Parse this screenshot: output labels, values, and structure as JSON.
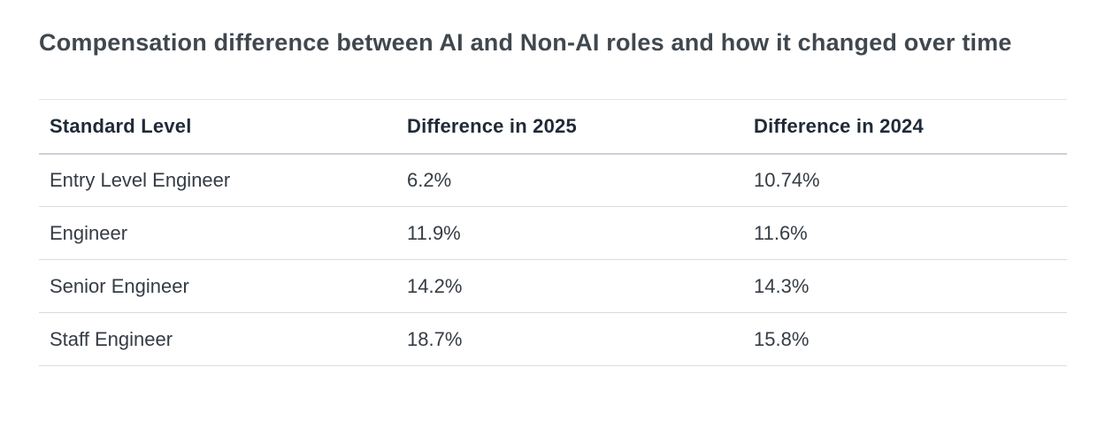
{
  "title": "Compensation difference between AI and Non-AI roles and how it changed over time",
  "table": {
    "columns": [
      "Standard Level",
      "Difference in 2025",
      "Difference in 2024"
    ],
    "rows": [
      {
        "level": "Entry Level Engineer",
        "diff_2025": "6.2%",
        "diff_2024": "10.74%"
      },
      {
        "level": "Engineer",
        "diff_2025": "11.9%",
        "diff_2024": "11.6%"
      },
      {
        "level": "Senior Engineer",
        "diff_2025": "14.2%",
        "diff_2024": "14.3%"
      },
      {
        "level": "Staff Engineer",
        "diff_2025": "18.7%",
        "diff_2024": "15.8%"
      }
    ]
  },
  "chart_data": {
    "type": "table",
    "title": "Compensation difference between AI and Non-AI roles and how it changed over time",
    "categories": [
      "Entry Level Engineer",
      "Engineer",
      "Senior Engineer",
      "Staff Engineer"
    ],
    "series": [
      {
        "name": "Difference in 2025",
        "values": [
          6.2,
          11.9,
          14.2,
          18.7
        ],
        "unit": "%"
      },
      {
        "name": "Difference in 2024",
        "values": [
          10.74,
          11.6,
          14.3,
          15.8
        ],
        "unit": "%"
      }
    ]
  },
  "colors": {
    "background": "#ffffff",
    "title_text": "#40474e",
    "header_text": "#1f2a37",
    "body_text": "#353c44",
    "row_border": "#d8dce0",
    "header_border": "#ccd1d8",
    "table_top_border": "#e2e5e9"
  }
}
